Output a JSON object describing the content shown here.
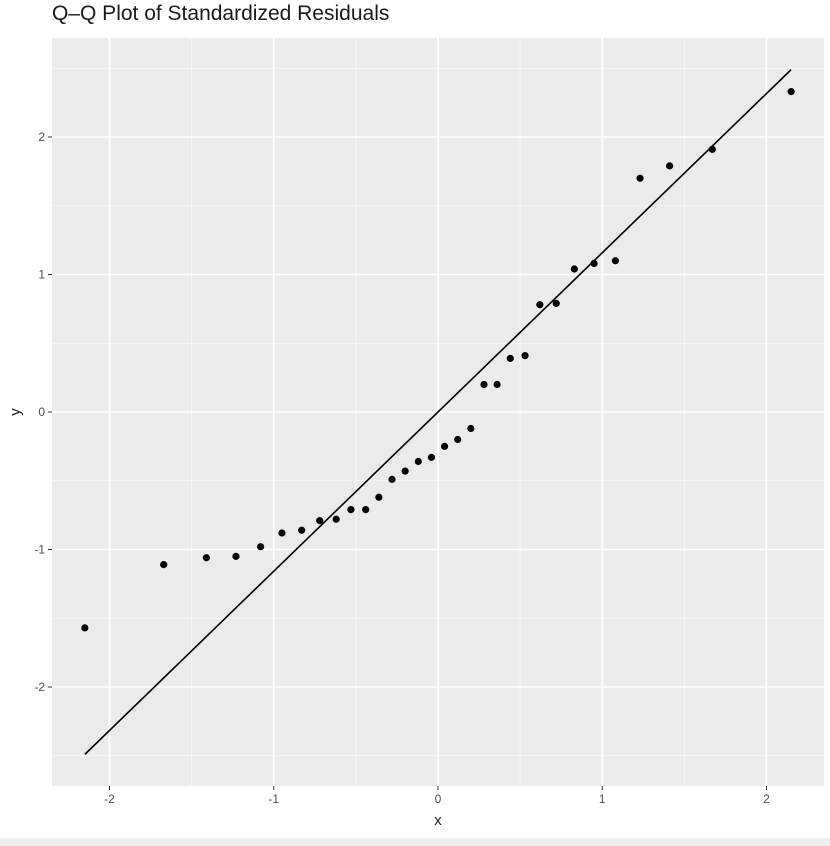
{
  "chart_data": {
    "type": "scatter",
    "title": "Q–Q Plot of Standardized Residuals",
    "xlabel": "x",
    "ylabel": "y",
    "xlim": [
      -2.35,
      2.35
    ],
    "ylim": [
      -2.72,
      2.72
    ],
    "x_ticks": [
      -2,
      -1,
      0,
      1,
      2
    ],
    "x_tick_labels": [
      "-2",
      "-1",
      "0",
      "1",
      "2"
    ],
    "y_ticks": [
      -2,
      -1,
      0,
      1,
      2
    ],
    "y_tick_labels": [
      "-2",
      "-1",
      "0",
      "1",
      "2"
    ],
    "grid": true,
    "background": "#ebebeb",
    "grid_color": "#ffffff",
    "point_color": "#000000",
    "line_color": "#000000",
    "points": {
      "x": [
        -2.15,
        -1.67,
        -1.41,
        -1.23,
        -1.08,
        -0.95,
        -0.83,
        -0.72,
        -0.62,
        -0.53,
        -0.44,
        -0.36,
        -0.28,
        -0.2,
        -0.12,
        -0.04,
        0.04,
        0.12,
        0.2,
        0.28,
        0.36,
        0.44,
        0.53,
        0.62,
        0.72,
        0.83,
        0.95,
        1.08,
        1.23,
        1.41,
        1.67,
        2.15
      ],
      "y": [
        -1.57,
        -1.11,
        -1.06,
        -1.05,
        -0.98,
        -0.88,
        -0.86,
        -0.79,
        -0.78,
        -0.71,
        -0.71,
        -0.62,
        -0.49,
        -0.43,
        -0.36,
        -0.33,
        -0.25,
        -0.2,
        -0.12,
        0.2,
        0.2,
        0.39,
        0.41,
        0.78,
        0.79,
        1.04,
        1.08,
        1.1,
        1.7,
        1.79,
        1.91,
        2.33
      ]
    },
    "reference_line": {
      "x": [
        -2.15,
        2.15
      ],
      "y": [
        -2.49,
        2.49
      ]
    }
  }
}
